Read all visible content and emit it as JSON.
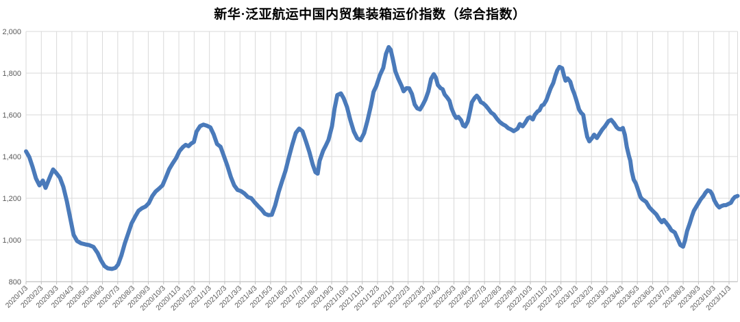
{
  "header": {
    "title": "新华·泛亚航运中国内贸集装箱运价指数（综合指数）"
  },
  "chart_data": {
    "type": "line",
    "title": "新华·泛亚航运中国内贸集装箱运价指数（综合指数）",
    "series_name": "综合指数",
    "line_color": "#4A7ABA",
    "grid_color": "#D9D9D9",
    "axis_line_color": "#BFBFBF",
    "axis_text_color": "#595959",
    "legend": "none",
    "grid": true,
    "ylim": [
      800,
      2000
    ],
    "y_tick_values": [
      800,
      1000,
      1200,
      1400,
      1600,
      1800,
      2000
    ],
    "y_ticks": [
      "800",
      "1,000",
      "1,200",
      "1,400",
      "1,600",
      "1,800",
      "2,000"
    ],
    "xlabel": "",
    "ylabel": "",
    "x_labels": [
      "2020/1/3",
      "2020/2/3",
      "2020/3/3",
      "2020/4/3",
      "2020/5/3",
      "2020/6/3",
      "2020/7/3",
      "2020/8/3",
      "2020/9/3",
      "2020/10/3",
      "2020/11/3",
      "2020/12/3",
      "2021/1/3",
      "2021/2/3",
      "2021/3/3",
      "2021/4/3",
      "2021/5/3",
      "2021/6/3",
      "2021/7/3",
      "2021/8/3",
      "2021/9/3",
      "2021/10/3",
      "2021/11/3",
      "2021/12/3",
      "2022/1/3",
      "2022/2/3",
      "2022/3/3",
      "2022/4/3",
      "2022/5/3",
      "2022/6/3",
      "2022/7/3",
      "2022/8/3",
      "2022/9/3",
      "2022/10/3",
      "2022/11/3",
      "2022/12/3",
      "2023/1/3",
      "2023/2/3",
      "2023/3/3",
      "2023/4/3",
      "2023/5/3",
      "2023/6/3",
      "2023/7/3",
      "2023/8/3",
      "2023/9/3",
      "2023/10/3",
      "2023/11/3"
    ],
    "x_unit": "month_index_from_2020_1_3",
    "points": [
      [
        0.0,
        1425
      ],
      [
        0.21,
        1398
      ],
      [
        0.43,
        1350
      ],
      [
        0.65,
        1295
      ],
      [
        0.88,
        1262
      ],
      [
        1.1,
        1285
      ],
      [
        1.28,
        1250
      ],
      [
        1.55,
        1300
      ],
      [
        1.77,
        1338
      ],
      [
        1.99,
        1320
      ],
      [
        2.22,
        1298
      ],
      [
        2.44,
        1255
      ],
      [
        2.67,
        1185
      ],
      [
        2.89,
        1105
      ],
      [
        3.11,
        1025
      ],
      [
        3.34,
        995
      ],
      [
        3.6,
        984
      ],
      [
        3.87,
        979
      ],
      [
        4.14,
        975
      ],
      [
        4.41,
        967
      ],
      [
        4.68,
        938
      ],
      [
        4.9,
        903
      ],
      [
        5.13,
        875
      ],
      [
        5.35,
        864
      ],
      [
        5.62,
        861
      ],
      [
        5.84,
        866
      ],
      [
        6.02,
        882
      ],
      [
        6.24,
        926
      ],
      [
        6.47,
        985
      ],
      [
        6.69,
        1032
      ],
      [
        6.91,
        1080
      ],
      [
        7.14,
        1112
      ],
      [
        7.36,
        1140
      ],
      [
        7.58,
        1152
      ],
      [
        7.81,
        1160
      ],
      [
        8.03,
        1176
      ],
      [
        8.26,
        1210
      ],
      [
        8.48,
        1232
      ],
      [
        8.7,
        1246
      ],
      [
        8.93,
        1262
      ],
      [
        9.15,
        1300
      ],
      [
        9.37,
        1340
      ],
      [
        9.6,
        1368
      ],
      [
        9.82,
        1392
      ],
      [
        10.04,
        1426
      ],
      [
        10.27,
        1446
      ],
      [
        10.45,
        1456
      ],
      [
        10.63,
        1450
      ],
      [
        10.8,
        1462
      ],
      [
        10.98,
        1470
      ],
      [
        11.16,
        1520
      ],
      [
        11.39,
        1546
      ],
      [
        11.61,
        1553
      ],
      [
        11.83,
        1548
      ],
      [
        12.06,
        1540
      ],
      [
        12.28,
        1506
      ],
      [
        12.5,
        1460
      ],
      [
        12.73,
        1447
      ],
      [
        12.95,
        1402
      ],
      [
        13.17,
        1356
      ],
      [
        13.4,
        1302
      ],
      [
        13.62,
        1262
      ],
      [
        13.84,
        1240
      ],
      [
        14.07,
        1234
      ],
      [
        14.29,
        1223
      ],
      [
        14.52,
        1206
      ],
      [
        14.74,
        1200
      ],
      [
        14.96,
        1180
      ],
      [
        15.19,
        1162
      ],
      [
        15.41,
        1146
      ],
      [
        15.63,
        1126
      ],
      [
        15.86,
        1119
      ],
      [
        16.08,
        1121
      ],
      [
        16.3,
        1166
      ],
      [
        16.53,
        1230
      ],
      [
        16.75,
        1281
      ],
      [
        16.98,
        1332
      ],
      [
        17.2,
        1396
      ],
      [
        17.42,
        1456
      ],
      [
        17.65,
        1513
      ],
      [
        17.87,
        1534
      ],
      [
        18.09,
        1521
      ],
      [
        18.32,
        1472
      ],
      [
        18.54,
        1422
      ],
      [
        18.76,
        1362
      ],
      [
        18.94,
        1325
      ],
      [
        19.08,
        1318
      ],
      [
        19.21,
        1380
      ],
      [
        19.44,
        1428
      ],
      [
        19.61,
        1452
      ],
      [
        19.79,
        1480
      ],
      [
        20.02,
        1545
      ],
      [
        20.19,
        1630
      ],
      [
        20.37,
        1695
      ],
      [
        20.6,
        1703
      ],
      [
        20.78,
        1680
      ],
      [
        21.0,
        1638
      ],
      [
        21.22,
        1575
      ],
      [
        21.45,
        1520
      ],
      [
        21.67,
        1488
      ],
      [
        21.89,
        1478
      ],
      [
        22.12,
        1512
      ],
      [
        22.34,
        1572
      ],
      [
        22.56,
        1642
      ],
      [
        22.74,
        1710
      ],
      [
        22.92,
        1738
      ],
      [
        23.15,
        1790
      ],
      [
        23.37,
        1825
      ],
      [
        23.55,
        1892
      ],
      [
        23.73,
        1925
      ],
      [
        23.86,
        1912
      ],
      [
        24.0,
        1868
      ],
      [
        24.17,
        1808
      ],
      [
        24.35,
        1774
      ],
      [
        24.58,
        1738
      ],
      [
        24.71,
        1713
      ],
      [
        24.89,
        1728
      ],
      [
        25.07,
        1727
      ],
      [
        25.25,
        1700
      ],
      [
        25.43,
        1650
      ],
      [
        25.6,
        1631
      ],
      [
        25.78,
        1626
      ],
      [
        25.96,
        1648
      ],
      [
        26.14,
        1674
      ],
      [
        26.32,
        1712
      ],
      [
        26.5,
        1772
      ],
      [
        26.68,
        1795
      ],
      [
        26.81,
        1779
      ],
      [
        26.95,
        1743
      ],
      [
        27.13,
        1728
      ],
      [
        27.26,
        1723
      ],
      [
        27.39,
        1698
      ],
      [
        27.57,
        1682
      ],
      [
        27.71,
        1667
      ],
      [
        27.84,
        1631
      ],
      [
        28.02,
        1600
      ],
      [
        28.15,
        1585
      ],
      [
        28.29,
        1590
      ],
      [
        28.47,
        1574
      ],
      [
        28.6,
        1549
      ],
      [
        28.73,
        1544
      ],
      [
        28.91,
        1569
      ],
      [
        29.05,
        1615
      ],
      [
        29.18,
        1661
      ],
      [
        29.36,
        1682
      ],
      [
        29.49,
        1692
      ],
      [
        29.63,
        1680
      ],
      [
        29.76,
        1661
      ],
      [
        29.9,
        1656
      ],
      [
        30.07,
        1645
      ],
      [
        30.25,
        1629
      ],
      [
        30.43,
        1611
      ],
      [
        30.61,
        1602
      ],
      [
        30.83,
        1580
      ],
      [
        31.01,
        1565
      ],
      [
        31.19,
        1555
      ],
      [
        31.37,
        1548
      ],
      [
        31.55,
        1536
      ],
      [
        31.73,
        1530
      ],
      [
        31.91,
        1522
      ],
      [
        32.04,
        1528
      ],
      [
        32.17,
        1534
      ],
      [
        32.31,
        1556
      ],
      [
        32.49,
        1545
      ],
      [
        32.66,
        1562
      ],
      [
        32.84,
        1584
      ],
      [
        32.98,
        1589
      ],
      [
        33.16,
        1578
      ],
      [
        33.29,
        1600
      ],
      [
        33.47,
        1616
      ],
      [
        33.6,
        1622
      ],
      [
        33.74,
        1644
      ],
      [
        33.87,
        1649
      ],
      [
        34.05,
        1671
      ],
      [
        34.18,
        1698
      ],
      [
        34.32,
        1726
      ],
      [
        34.5,
        1753
      ],
      [
        34.63,
        1786
      ],
      [
        34.76,
        1813
      ],
      [
        34.9,
        1830
      ],
      [
        35.08,
        1824
      ],
      [
        35.21,
        1786
      ],
      [
        35.3,
        1764
      ],
      [
        35.43,
        1775
      ],
      [
        35.61,
        1759
      ],
      [
        35.74,
        1726
      ],
      [
        35.88,
        1700
      ],
      [
        36.01,
        1670
      ],
      [
        36.19,
        1625
      ],
      [
        36.32,
        1610
      ],
      [
        36.46,
        1600
      ],
      [
        36.59,
        1543
      ],
      [
        36.72,
        1495
      ],
      [
        36.86,
        1473
      ],
      [
        37.04,
        1490
      ],
      [
        37.17,
        1505
      ],
      [
        37.35,
        1489
      ],
      [
        37.53,
        1510
      ],
      [
        37.71,
        1530
      ],
      [
        37.88,
        1545
      ],
      [
        38.11,
        1570
      ],
      [
        38.29,
        1576
      ],
      [
        38.47,
        1560
      ],
      [
        38.65,
        1540
      ],
      [
        38.78,
        1532
      ],
      [
        38.91,
        1530
      ],
      [
        39.05,
        1537
      ],
      [
        39.18,
        1505
      ],
      [
        39.31,
        1446
      ],
      [
        39.45,
        1403
      ],
      [
        39.54,
        1380
      ],
      [
        39.63,
        1331
      ],
      [
        39.76,
        1290
      ],
      [
        39.9,
        1271
      ],
      [
        40.08,
        1233
      ],
      [
        40.21,
        1205
      ],
      [
        40.34,
        1194
      ],
      [
        40.57,
        1183
      ],
      [
        40.79,
        1156
      ],
      [
        41.01,
        1139
      ],
      [
        41.24,
        1123
      ],
      [
        41.42,
        1101
      ],
      [
        41.6,
        1085
      ],
      [
        41.73,
        1096
      ],
      [
        41.91,
        1080
      ],
      [
        42.09,
        1063
      ],
      [
        42.22,
        1047
      ],
      [
        42.45,
        1036
      ],
      [
        42.67,
        1000
      ],
      [
        42.81,
        976
      ],
      [
        42.99,
        968
      ],
      [
        43.12,
        998
      ],
      [
        43.25,
        1042
      ],
      [
        43.43,
        1080
      ],
      [
        43.57,
        1113
      ],
      [
        43.7,
        1140
      ],
      [
        43.88,
        1162
      ],
      [
        44.01,
        1178
      ],
      [
        44.15,
        1195
      ],
      [
        44.33,
        1211
      ],
      [
        44.46,
        1227
      ],
      [
        44.6,
        1238
      ],
      [
        44.78,
        1233
      ],
      [
        44.91,
        1217
      ],
      [
        45.04,
        1190
      ],
      [
        45.22,
        1167
      ],
      [
        45.36,
        1156
      ],
      [
        45.49,
        1162
      ],
      [
        45.67,
        1167
      ],
      [
        45.8,
        1167
      ],
      [
        45.94,
        1172
      ],
      [
        46.12,
        1178
      ],
      [
        46.25,
        1195
      ],
      [
        46.38,
        1206
      ],
      [
        46.56,
        1211
      ]
    ]
  }
}
